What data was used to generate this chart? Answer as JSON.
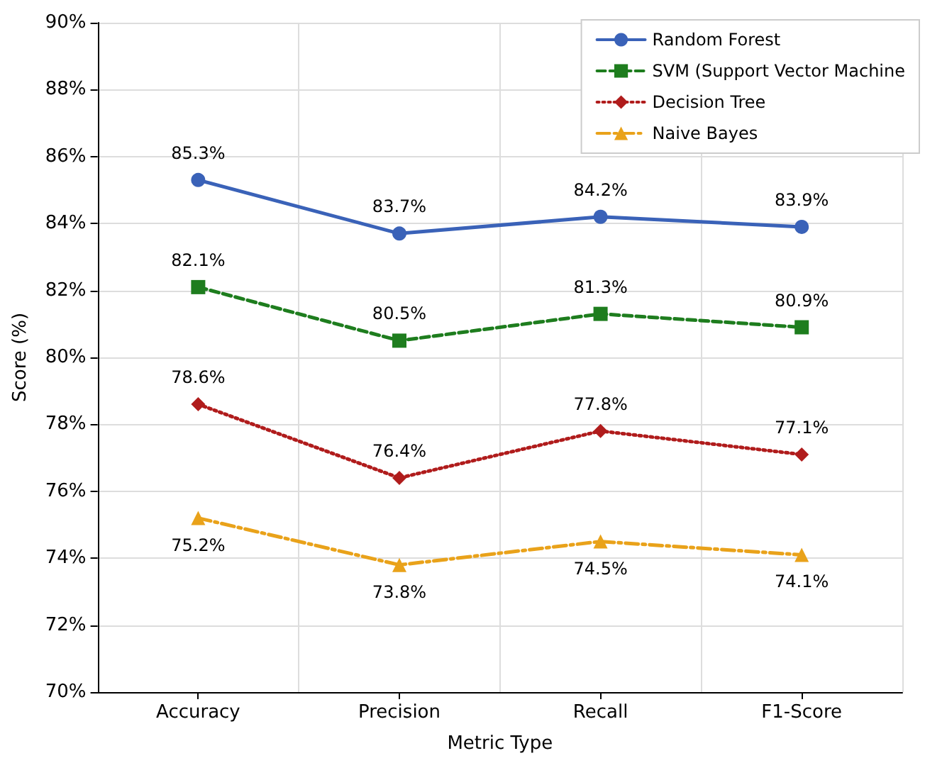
{
  "chart_data": {
    "type": "line",
    "xlabel": "Metric Type",
    "ylabel": "Score (%)",
    "categories": [
      "Accuracy",
      "Precision",
      "Recall",
      "F1-Score"
    ],
    "series": [
      {
        "name": "Random Forest",
        "color": "#3a62b8",
        "marker": "circle",
        "line_style": "solid",
        "values": [
          85.3,
          83.7,
          84.2,
          83.9
        ],
        "value_labels": [
          "85.3%",
          "83.7%",
          "84.2%",
          "83.9%"
        ]
      },
      {
        "name": "SVM (Support Vector Machine",
        "color": "#1e7d1e",
        "marker": "square",
        "line_style": "dashed",
        "values": [
          82.1,
          80.5,
          81.3,
          80.9
        ],
        "value_labels": [
          "82.1%",
          "80.5%",
          "81.3%",
          "80.9%"
        ]
      },
      {
        "name": "Decision Tree",
        "color": "#b01c1c",
        "marker": "diamond",
        "line_style": "dotted",
        "values": [
          78.6,
          76.4,
          77.8,
          77.1
        ],
        "value_labels": [
          "78.6%",
          "76.4%",
          "77.8%",
          "77.1%"
        ]
      },
      {
        "name": "Naive Bayes",
        "color": "#e9a21a",
        "marker": "triangle",
        "line_style": "dashdot",
        "values": [
          75.2,
          73.8,
          74.5,
          74.1
        ],
        "value_labels": [
          "75.2%",
          "73.8%",
          "74.5%",
          "74.1%"
        ]
      }
    ],
    "ylim": [
      70,
      90
    ],
    "yticks": [
      {
        "value": 70,
        "label": "70%"
      },
      {
        "value": 72,
        "label": "72%"
      },
      {
        "value": 74,
        "label": "74%"
      },
      {
        "value": 76,
        "label": "76%"
      },
      {
        "value": 78,
        "label": "78%"
      },
      {
        "value": 80,
        "label": "80%"
      },
      {
        "value": 82,
        "label": "82%"
      },
      {
        "value": 84,
        "label": "84%"
      },
      {
        "value": 86,
        "label": "86%"
      },
      {
        "value": 88,
        "label": "88%"
      },
      {
        "value": 90,
        "label": "90%"
      }
    ],
    "grid": true,
    "legend": "top right"
  }
}
